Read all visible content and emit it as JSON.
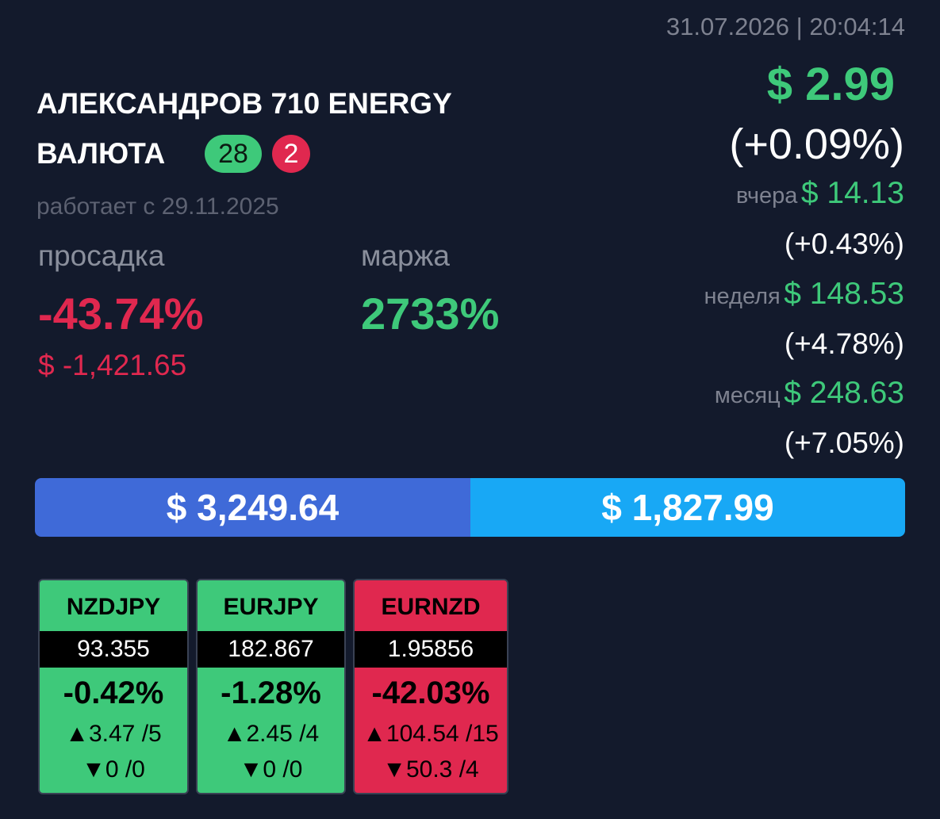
{
  "header": {
    "datetime": "31.07.2026 | 20:04:14"
  },
  "account": {
    "title_line1": "АЛЕКСАНДРОВ 710 ENERGY",
    "title_line2": "ВАЛЮТА",
    "badge_green": "28",
    "badge_red": "2",
    "since": "работает с 29.11.2025",
    "drawdown_label": "просадка",
    "drawdown_pct": "-43.74%",
    "drawdown_amount": "$ -1,421.65",
    "margin_label": "маржа",
    "margin_value": "2733%"
  },
  "profit": {
    "amount": "$ 2.99",
    "pct": "(+0.09%)",
    "periods": [
      {
        "label": "вчера",
        "amount": "$ 14.13",
        "pct": "(+0.43%)"
      },
      {
        "label": "неделя",
        "amount": "$ 148.53",
        "pct": "(+4.78%)"
      },
      {
        "label": "месяц",
        "amount": "$ 248.63",
        "pct": "(+7.05%)"
      }
    ]
  },
  "balance": {
    "left": "$ 3,249.64",
    "right": "$ 1,827.99"
  },
  "cards": [
    {
      "symbol": "NZDJPY",
      "price": "93.355",
      "pct": "-0.42%",
      "up": "▲3.47 /5",
      "down": "▼0 /0",
      "state": "green"
    },
    {
      "symbol": "EURJPY",
      "price": "182.867",
      "pct": "-1.28%",
      "up": "▲2.45 /4",
      "down": "▼0 /0",
      "state": "green"
    },
    {
      "symbol": "EURNZD",
      "price": "1.95856",
      "pct": "-42.03%",
      "up": "▲104.54 /15",
      "down": "▼50.3 /4",
      "state": "red"
    }
  ]
}
